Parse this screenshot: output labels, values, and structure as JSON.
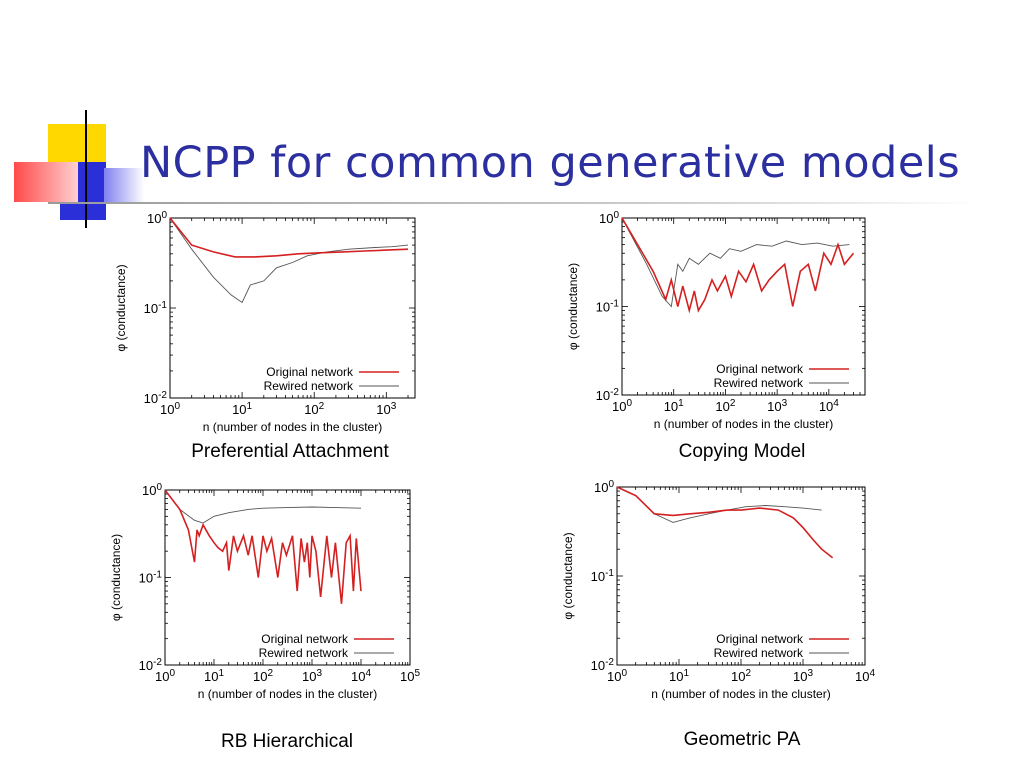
{
  "slide": {
    "title": "NCPP for common generative models",
    "colors": {
      "title": "#2b2fa0",
      "deco_yellow": "#ffd800",
      "deco_blue": "#2a2fd8",
      "deco_red": "#ff5a5a"
    }
  },
  "chart_data": [
    {
      "type": "line",
      "caption": "Preferential Attachment",
      "xlabel": "n (number of nodes in the cluster)",
      "ylabel": "φ (conductance)",
      "xscale": "log",
      "yscale": "log",
      "xlim": [
        1,
        2500
      ],
      "ylim": [
        0.01,
        1
      ],
      "xticks": [
        {
          "base": "10",
          "exp": "0"
        },
        {
          "base": "10",
          "exp": "1"
        },
        {
          "base": "10",
          "exp": "2"
        },
        {
          "base": "10",
          "exp": "3"
        }
      ],
      "yticks": [
        {
          "base": "10",
          "exp": "0"
        },
        {
          "base": "10",
          "exp": "-1"
        },
        {
          "base": "10",
          "exp": "-2"
        }
      ],
      "legend_position": "bottom-right",
      "series": [
        {
          "name": "Original network",
          "color": "#d42020",
          "x": [
            1,
            2,
            4,
            8,
            15,
            30,
            60,
            120,
            250,
            500,
            1000,
            2000
          ],
          "y": [
            1,
            0.5,
            0.42,
            0.37,
            0.37,
            0.38,
            0.4,
            0.41,
            0.42,
            0.43,
            0.44,
            0.45
          ]
        },
        {
          "name": "Rewired network",
          "color": "#555555",
          "x": [
            1,
            2,
            4,
            7,
            10,
            13,
            20,
            30,
            50,
            80,
            150,
            300,
            700,
            1200,
            2000
          ],
          "y": [
            1,
            0.45,
            0.22,
            0.14,
            0.115,
            0.18,
            0.2,
            0.28,
            0.32,
            0.38,
            0.42,
            0.45,
            0.47,
            0.48,
            0.5
          ]
        }
      ]
    },
    {
      "type": "line",
      "caption": "Copying Model",
      "xlabel": "n (number of nodes in the cluster)",
      "ylabel": "φ (conductance)",
      "xscale": "log",
      "yscale": "log",
      "xlim": [
        1,
        50000
      ],
      "ylim": [
        0.01,
        1
      ],
      "xticks": [
        {
          "base": "10",
          "exp": "0"
        },
        {
          "base": "10",
          "exp": "1"
        },
        {
          "base": "10",
          "exp": "2"
        },
        {
          "base": "10",
          "exp": "3"
        },
        {
          "base": "10",
          "exp": "4"
        }
      ],
      "yticks": [
        {
          "base": "10",
          "exp": "0"
        },
        {
          "base": "10",
          "exp": "-1"
        },
        {
          "base": "10",
          "exp": "-2"
        }
      ],
      "legend_position": "bottom-right",
      "series": [
        {
          "name": "Original network",
          "color": "#d42020",
          "x": [
            1,
            2,
            4,
            7,
            9,
            12,
            15,
            20,
            25,
            30,
            40,
            55,
            70,
            100,
            130,
            180,
            250,
            350,
            500,
            700,
            1000,
            1400,
            2000,
            2800,
            4000,
            5500,
            8000,
            11000,
            15000,
            20000,
            30000
          ],
          "y": [
            1,
            0.5,
            0.25,
            0.12,
            0.2,
            0.1,
            0.17,
            0.09,
            0.15,
            0.09,
            0.12,
            0.2,
            0.15,
            0.22,
            0.13,
            0.25,
            0.19,
            0.3,
            0.15,
            0.2,
            0.25,
            0.3,
            0.1,
            0.25,
            0.3,
            0.15,
            0.4,
            0.3,
            0.5,
            0.3,
            0.4
          ]
        },
        {
          "name": "Rewired network",
          "color": "#555555",
          "x": [
            1,
            3,
            6,
            9,
            12,
            15,
            20,
            30,
            50,
            80,
            120,
            200,
            400,
            800,
            1500,
            3000,
            6000,
            12000,
            25000
          ],
          "y": [
            1,
            0.3,
            0.13,
            0.1,
            0.3,
            0.25,
            0.35,
            0.3,
            0.4,
            0.35,
            0.45,
            0.42,
            0.5,
            0.48,
            0.55,
            0.5,
            0.52,
            0.48,
            0.5
          ]
        }
      ]
    },
    {
      "type": "line",
      "caption": "RB Hierarchical",
      "xlabel": "n (number of nodes in the cluster)",
      "ylabel": "φ (conductance)",
      "xscale": "log",
      "yscale": "log",
      "xlim": [
        1,
        100000
      ],
      "ylim": [
        0.01,
        1
      ],
      "xticks": [
        {
          "base": "10",
          "exp": "0"
        },
        {
          "base": "10",
          "exp": "1"
        },
        {
          "base": "10",
          "exp": "2"
        },
        {
          "base": "10",
          "exp": "3"
        },
        {
          "base": "10",
          "exp": "4"
        },
        {
          "base": "10",
          "exp": "5"
        }
      ],
      "yticks": [
        {
          "base": "10",
          "exp": "0"
        },
        {
          "base": "10",
          "exp": "-1"
        },
        {
          "base": "10",
          "exp": "-2"
        }
      ],
      "legend_position": "bottom-right",
      "series": [
        {
          "name": "Original network",
          "color": "#d42020",
          "x": [
            1,
            2,
            3,
            4,
            4.5,
            5,
            6,
            8,
            10,
            12,
            15,
            18,
            20,
            25,
            30,
            40,
            50,
            60,
            80,
            100,
            120,
            150,
            200,
            250,
            300,
            400,
            500,
            600,
            700,
            800,
            900,
            1000,
            1200,
            1500,
            2000,
            2500,
            3000,
            4000,
            5000,
            6000,
            7000,
            8000,
            10000
          ],
          "y": [
            1,
            0.6,
            0.35,
            0.15,
            0.35,
            0.3,
            0.4,
            0.3,
            0.25,
            0.22,
            0.2,
            0.25,
            0.12,
            0.3,
            0.2,
            0.3,
            0.18,
            0.3,
            0.1,
            0.3,
            0.2,
            0.28,
            0.1,
            0.25,
            0.18,
            0.3,
            0.07,
            0.28,
            0.15,
            0.25,
            0.1,
            0.3,
            0.2,
            0.06,
            0.3,
            0.1,
            0.25,
            0.05,
            0.25,
            0.3,
            0.07,
            0.28,
            0.07
          ]
        },
        {
          "name": "Rewired network",
          "color": "#555555",
          "x": [
            1,
            2,
            4,
            6,
            10,
            20,
            50,
            100,
            300,
            1000,
            3000,
            10000
          ],
          "y": [
            1,
            0.6,
            0.45,
            0.42,
            0.5,
            0.55,
            0.6,
            0.62,
            0.63,
            0.64,
            0.63,
            0.62
          ]
        }
      ]
    },
    {
      "type": "line",
      "caption": "Geometric PA",
      "xlabel": "n (number of nodes in the cluster)",
      "ylabel": "φ (conductance)",
      "xscale": "log",
      "yscale": "log",
      "xlim": [
        1,
        10000
      ],
      "ylim": [
        0.01,
        1
      ],
      "xticks": [
        {
          "base": "10",
          "exp": "0"
        },
        {
          "base": "10",
          "exp": "1"
        },
        {
          "base": "10",
          "exp": "2"
        },
        {
          "base": "10",
          "exp": "3"
        },
        {
          "base": "10",
          "exp": "4"
        }
      ],
      "yticks": [
        {
          "base": "10",
          "exp": "0"
        },
        {
          "base": "10",
          "exp": "-1"
        },
        {
          "base": "10",
          "exp": "-2"
        }
      ],
      "legend_position": "bottom-right",
      "series": [
        {
          "name": "Original network",
          "color": "#d42020",
          "x": [
            1,
            2,
            4,
            8,
            15,
            30,
            60,
            100,
            200,
            400,
            700,
            1000,
            1500,
            2000,
            3000
          ],
          "y": [
            1,
            0.8,
            0.5,
            0.48,
            0.5,
            0.52,
            0.55,
            0.55,
            0.58,
            0.55,
            0.45,
            0.35,
            0.25,
            0.2,
            0.16
          ]
        },
        {
          "name": "Rewired network",
          "color": "#555555",
          "x": [
            1,
            2,
            4,
            8,
            15,
            30,
            60,
            120,
            250,
            500,
            1000,
            2000
          ],
          "y": [
            1,
            0.8,
            0.5,
            0.4,
            0.45,
            0.5,
            0.55,
            0.6,
            0.62,
            0.6,
            0.58,
            0.55
          ]
        }
      ]
    }
  ]
}
